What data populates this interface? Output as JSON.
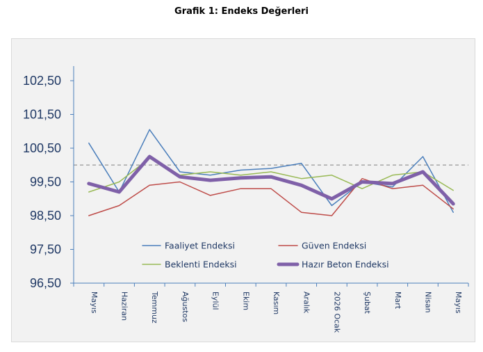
{
  "title": "Grafik 1: Endeks Değerleri",
  "chart_data": {
    "type": "line",
    "title": "Grafik 1: Endeks Değerleri",
    "categories": [
      "Mayıs",
      "Haziran",
      "Temmuz",
      "Ağustos",
      "Eylül",
      "Ekim",
      "Kasım",
      "Aralık",
      "2026 Ocak",
      "Şubat",
      "Mart",
      "Nisan",
      "Mayıs"
    ],
    "y_tick_labels": [
      "96,50",
      "97,50",
      "98,50",
      "99,50",
      "100,50",
      "101,50",
      "102,50"
    ],
    "ylim": [
      96.5,
      103.0
    ],
    "reference_line": 100,
    "grid": false,
    "legend_position": "inside-bottom",
    "series": [
      {
        "name": "Faaliyet Endeksi",
        "color": "#4a7ebb",
        "width": 1.5,
        "values": [
          100.65,
          99.2,
          101.05,
          99.8,
          99.7,
          99.85,
          99.9,
          100.05,
          98.8,
          99.5,
          99.35,
          100.25,
          98.6
        ]
      },
      {
        "name": "Güven Endeksi",
        "color": "#be4b48",
        "width": 1.5,
        "values": [
          98.5,
          98.8,
          99.4,
          99.5,
          99.1,
          99.3,
          99.3,
          98.6,
          98.5,
          99.6,
          99.3,
          99.4,
          98.7
        ]
      },
      {
        "name": "Beklenti Endeksi",
        "color": "#98b954",
        "width": 1.5,
        "values": [
          99.2,
          99.5,
          100.2,
          99.7,
          99.8,
          99.7,
          99.8,
          99.6,
          99.7,
          99.3,
          99.7,
          99.8,
          99.25
        ]
      },
      {
        "name": "Hazır Beton Endeksi",
        "color": "#7f60a8",
        "width": 5,
        "values": [
          99.45,
          99.2,
          100.25,
          99.65,
          99.55,
          99.62,
          99.65,
          99.4,
          99.0,
          99.5,
          99.45,
          99.8,
          98.85
        ]
      }
    ]
  }
}
